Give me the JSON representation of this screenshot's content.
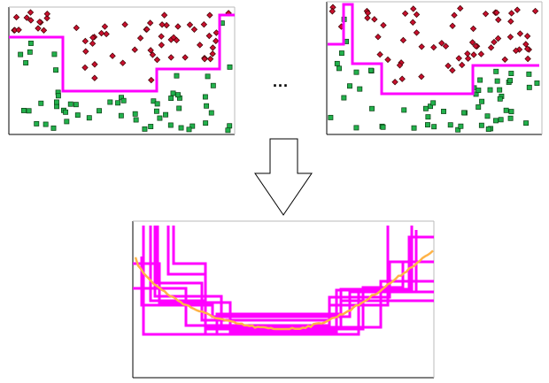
{
  "diagram": {
    "ellipsis": "...",
    "colors": {
      "class_a": "#c8102e",
      "class_b": "#22b14c",
      "boundary": "#ff00ff",
      "average": "#ffb347",
      "axis": "#000000",
      "arrow": "#ffffff"
    },
    "icons": {
      "class_a_marker": "diamond-icon",
      "class_b_marker": "square-icon",
      "transition": "down-arrow-icon"
    }
  }
}
